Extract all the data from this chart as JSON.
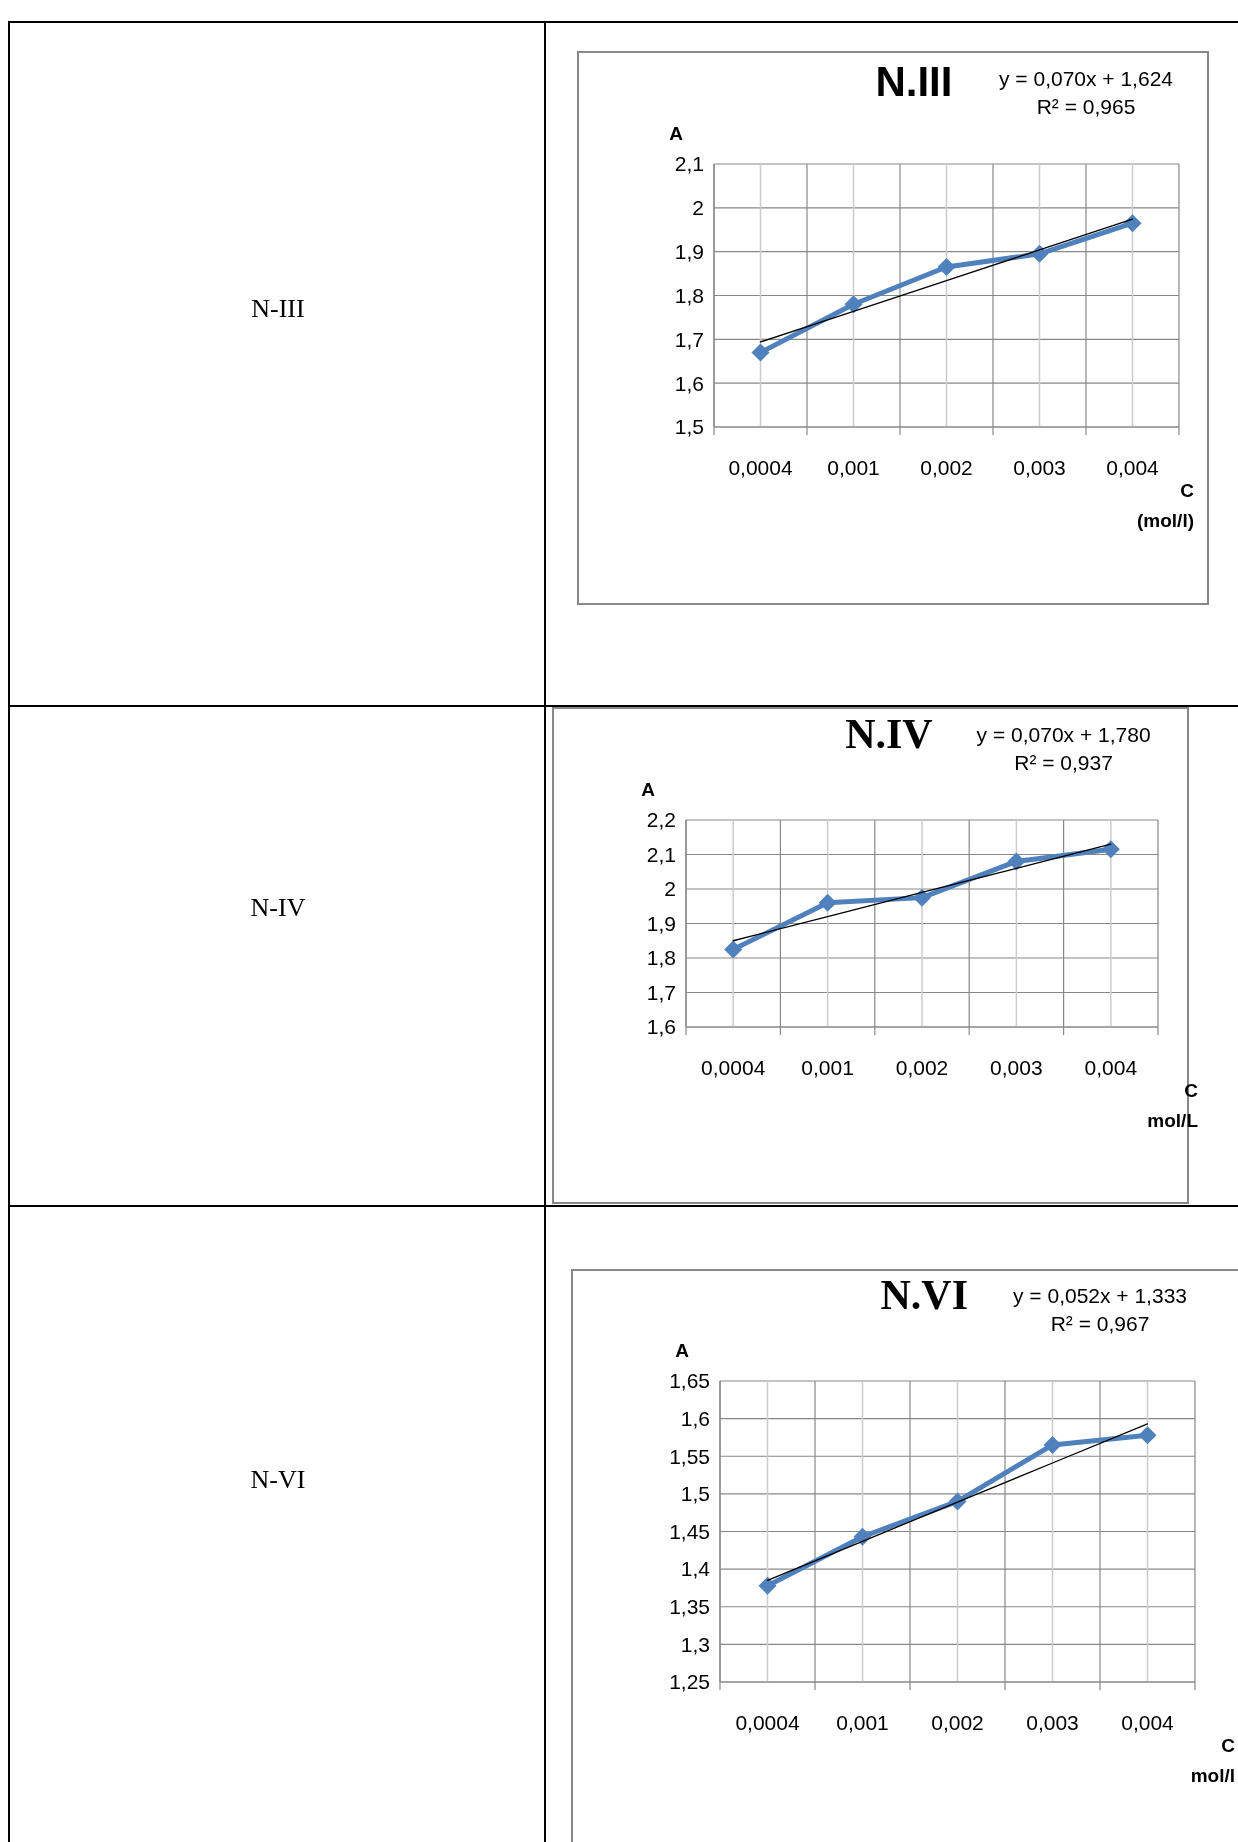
{
  "chart_data": [
    {
      "type": "line",
      "title": "N.III",
      "ylabel": "A",
      "xlabel": "C (mol/l)",
      "categories": [
        "0,0004",
        "0,001",
        "0,002",
        "0,003",
        "0,004"
      ],
      "ylim": [
        1.5,
        2.1
      ],
      "yticks": [
        {
          "value": 1.5,
          "label": "1,5"
        },
        {
          "value": 1.6,
          "label": "1,6"
        },
        {
          "value": 1.7,
          "label": "1,7"
        },
        {
          "value": 1.8,
          "label": "1,8"
        },
        {
          "value": 1.9,
          "label": "1,9"
        },
        2,
        {
          "value": 2.1,
          "label": "2,1"
        }
      ],
      "grid": true,
      "marker": "diamond",
      "series": [
        {
          "color": "#4f81bd",
          "values": [
            1.67,
            1.78,
            1.865,
            1.895,
            1.965
          ]
        },
        {
          "type": "line",
          "color": "#000000",
          "marker": "none",
          "values": [
            1.694,
            1.764,
            1.834,
            1.904,
            1.974
          ]
        }
      ],
      "annotations": [
        "N-III",
        "y = 0,070x + 1,624",
        "R² = 0,965"
      ]
    },
    {
      "type": "line",
      "title": "N.IV",
      "ylabel": "A",
      "xlabel": "C mol/L",
      "categories": [
        "0,0004",
        "0,001",
        "0,002",
        "0,003",
        "0,004"
      ],
      "ylim": [
        1.6,
        2.2
      ],
      "yticks": [
        {
          "value": 1.6,
          "label": "1,6"
        },
        {
          "value": 1.7,
          "label": "1,7"
        },
        {
          "value": 1.8,
          "label": "1,8"
        },
        {
          "value": 1.9,
          "label": "1,9"
        },
        2,
        {
          "value": 2.1,
          "label": "2,1"
        },
        {
          "value": 2.2,
          "label": "2,2"
        }
      ],
      "grid": true,
      "marker": "diamond",
      "series": [
        {
          "color": "#4f81bd",
          "values": [
            1.825,
            1.96,
            1.975,
            2.08,
            2.115
          ]
        },
        {
          "type": "line",
          "color": "#000000",
          "marker": "none",
          "values": [
            1.85,
            1.92,
            1.99,
            2.06,
            2.13
          ]
        }
      ],
      "annotations": [
        "N-IV",
        "y = 0,070x + 1,780",
        "R² = 0,937"
      ]
    },
    {
      "type": "line",
      "title": "N.VI",
      "ylabel": "A",
      "xlabel": "C mol/l",
      "categories": [
        "0,0004",
        "0,001",
        "0,002",
        "0,003",
        "0,004"
      ],
      "ylim": [
        1.25,
        1.65
      ],
      "yticks": [
        {
          "value": 1.25,
          "label": "1,25"
        },
        {
          "value": 1.3,
          "label": "1,3"
        },
        {
          "value": 1.35,
          "label": "1,35"
        },
        {
          "value": 1.4,
          "label": "1,4"
        },
        {
          "value": 1.45,
          "label": "1,45"
        },
        {
          "value": 1.5,
          "label": "1,5"
        },
        {
          "value": 1.55,
          "label": "1,55"
        },
        {
          "value": 1.6,
          "label": "1,6"
        },
        {
          "value": 1.65,
          "label": "1,65"
        }
      ],
      "grid": true,
      "marker": "diamond",
      "series": [
        {
          "color": "#4f81bd",
          "values": [
            1.378,
            1.443,
            1.49,
            1.565,
            1.578
          ]
        },
        {
          "type": "line",
          "color": "#000000",
          "marker": "none",
          "values": [
            1.385,
            1.437,
            1.489,
            1.541,
            1.593
          ]
        }
      ],
      "annotations": [
        "N-VI",
        "y = 0,052x + 1,333",
        "R² = 0,967"
      ]
    }
  ]
}
